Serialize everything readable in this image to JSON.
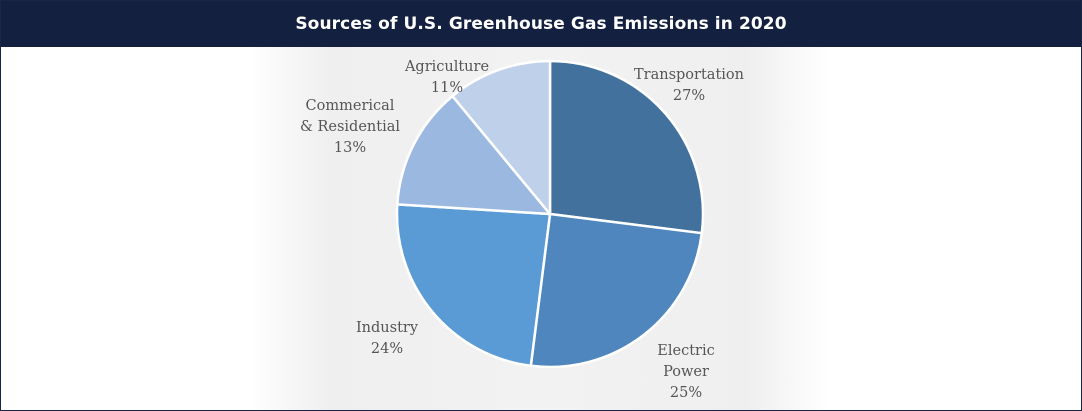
{
  "header": {
    "title": "Sources of U.S. Greenhouse Gas Emissions in 2020"
  },
  "colors": {
    "header_bg": "#13203f",
    "header_text": "#ffffff",
    "slice_transportation": "#41719c",
    "slice_electric_power": "#4e86bd",
    "slice_industry": "#5b9bd5",
    "slice_commercial": "#9ab8e0",
    "slice_agriculture": "#bfd0ea",
    "label_text": "#555555"
  },
  "chart_data": {
    "type": "pie",
    "title": "Sources of U.S. Greenhouse Gas Emissions in 2020",
    "start_angle_deg": 0,
    "direction": "clockwise",
    "slices": [
      {
        "lines": [
          "Transportation",
          "27%"
        ],
        "value": 27,
        "color": "#41719c"
      },
      {
        "lines": [
          "Electric",
          "Power",
          "25%"
        ],
        "value": 25,
        "color": "#4e86bd"
      },
      {
        "lines": [
          "Industry",
          "24%"
        ],
        "value": 24,
        "color": "#5b9bd5"
      },
      {
        "lines": [
          "Commerical",
          "& Residential",
          "13%"
        ],
        "value": 13,
        "color": "#9ab8e0"
      },
      {
        "lines": [
          "Agriculture",
          "11%"
        ],
        "value": 11,
        "color": "#bfd0ea"
      }
    ]
  }
}
